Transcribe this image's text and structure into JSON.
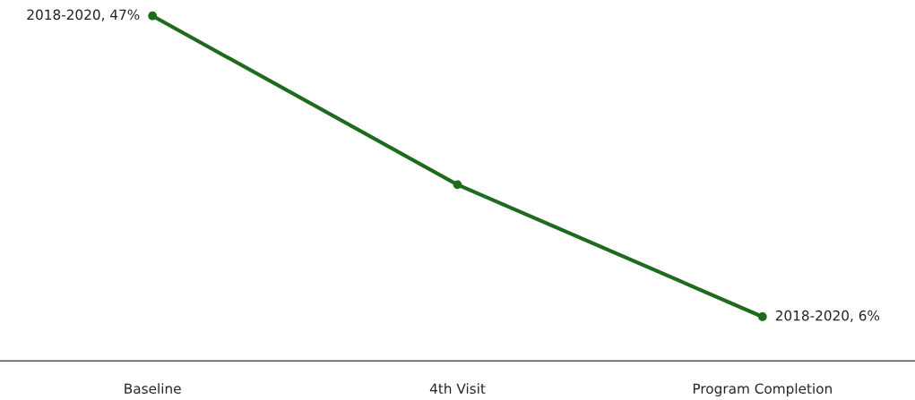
{
  "chart_data": {
    "type": "line",
    "categories": [
      "Baseline",
      "4th Visit",
      "Program Completion"
    ],
    "series": [
      {
        "color": "#1e6b1e",
        "values": [
          47,
          24,
          6
        ],
        "value_labels": [
          "2018-2020, 47%",
          null,
          "2018-2020, 6%"
        ]
      }
    ],
    "tick_labels": "x",
    "marker": "circle",
    "line_style": "solid",
    "grid": false,
    "legend": false
  }
}
